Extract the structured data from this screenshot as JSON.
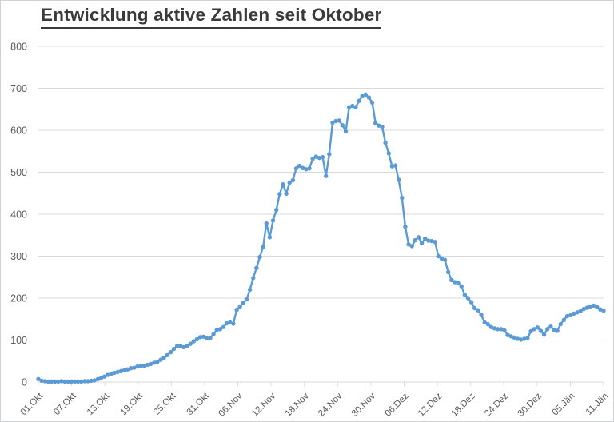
{
  "page": {
    "title": "Entwicklung aktive Zahlen seit Oktober"
  },
  "chart_data": {
    "type": "line",
    "title": "Entwicklung aktive Zahlen seit Oktober",
    "xlabel": "",
    "ylabel": "",
    "ylim": [
      0,
      800
    ],
    "y_tick_step": 100,
    "y_tick_labels": [
      "800",
      "700",
      "600",
      "500",
      "400",
      "300",
      "200",
      "100",
      "0"
    ],
    "x_tick_labels": [
      "01.Okt",
      "07.Okt",
      "13.Okt",
      "19.Okt",
      "25.Okt",
      "31.Okt",
      "06.Nov",
      "12.Nov",
      "18.Nov",
      "24.Nov",
      "30.Nov",
      "06.Dez",
      "12.Dez",
      "18.Dez",
      "24.Dez",
      "30.Dez",
      "05.Jän",
      "11.Jän"
    ],
    "grid": "horizontal",
    "legend": "none",
    "marker": "circle",
    "series": [
      {
        "name": "aktive Zahlen",
        "values": [
          7,
          3,
          2,
          1,
          1,
          1,
          1,
          2,
          1,
          1,
          1,
          1,
          1,
          1,
          2,
          2,
          3,
          4,
          7,
          10,
          13,
          17,
          19,
          22,
          24,
          26,
          28,
          30,
          33,
          34,
          37,
          38,
          39,
          41,
          43,
          46,
          48,
          53,
          58,
          64,
          71,
          79,
          86,
          86,
          83,
          86,
          91,
          97,
          102,
          107,
          108,
          104,
          105,
          114,
          124,
          126,
          131,
          140,
          142,
          139,
          172,
          180,
          189,
          197,
          220,
          248,
          272,
          298,
          322,
          378,
          345,
          385,
          410,
          448,
          471,
          449,
          475,
          481,
          509,
          515,
          510,
          507,
          509,
          532,
          537,
          534,
          536,
          491,
          543,
          618,
          622,
          623,
          612,
          597,
          655,
          658,
          655,
          670,
          682,
          685,
          678,
          666,
          617,
          611,
          608,
          570,
          545,
          514,
          516,
          482,
          439,
          370,
          328,
          324,
          338,
          345,
          331,
          342,
          337,
          336,
          334,
          300,
          294,
          291,
          262,
          243,
          238,
          236,
          228,
          208,
          200,
          190,
          176,
          171,
          160,
          142,
          138,
          131,
          128,
          126,
          126,
          123,
          112,
          109,
          106,
          103,
          101,
          103,
          105,
          121,
          126,
          130,
          122,
          113,
          126,
          132,
          124,
          122,
          138,
          148,
          157,
          159,
          163,
          166,
          169,
          174,
          177,
          180,
          182,
          179,
          173,
          170
        ]
      }
    ],
    "colors": {
      "line": "#5b9bd5",
      "marker": "#5b9bd5",
      "gridline": "#d9d9d9",
      "axis_labels": "#595959",
      "title": "#3a3a3a",
      "background": "#ffffff"
    }
  }
}
